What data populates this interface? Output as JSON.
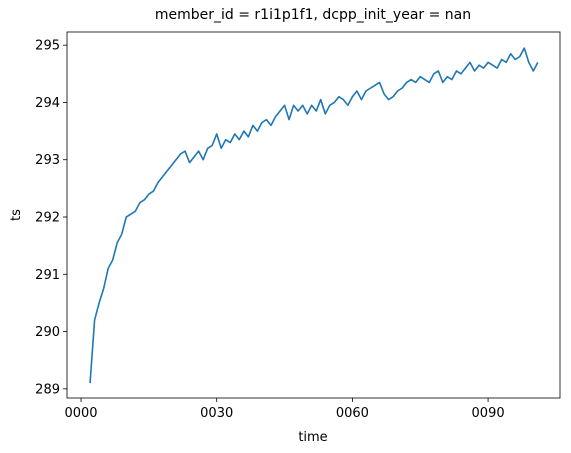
{
  "chart_data": {
    "type": "line",
    "title": "member_id = r1i1p1f1, dcpp_init_year = nan",
    "x_label": "time",
    "y_label": "ts",
    "x": [
      2,
      3,
      4,
      5,
      6,
      7,
      8,
      9,
      10,
      11,
      12,
      13,
      14,
      15,
      16,
      17,
      18,
      19,
      20,
      21,
      22,
      23,
      24,
      25,
      26,
      27,
      28,
      29,
      30,
      31,
      32,
      33,
      34,
      35,
      36,
      37,
      38,
      39,
      40,
      41,
      42,
      43,
      44,
      45,
      46,
      47,
      48,
      49,
      50,
      51,
      52,
      53,
      54,
      55,
      56,
      57,
      58,
      59,
      60,
      61,
      62,
      63,
      64,
      65,
      66,
      67,
      68,
      69,
      70,
      71,
      72,
      73,
      74,
      75,
      76,
      77,
      78,
      79,
      80,
      81,
      82,
      83,
      84,
      85,
      86,
      87,
      88,
      89,
      90,
      91,
      92,
      93,
      94,
      95,
      96,
      97,
      98,
      99,
      100,
      101
    ],
    "series": [
      {
        "name": "ts",
        "color": "#1f77b4",
        "values": [
          289.1,
          290.2,
          290.5,
          290.75,
          291.1,
          291.25,
          291.55,
          291.7,
          292.0,
          292.05,
          292.1,
          292.25,
          292.3,
          292.4,
          292.45,
          292.6,
          292.7,
          292.8,
          292.9,
          293.0,
          293.1,
          293.15,
          292.95,
          293.05,
          293.15,
          293.0,
          293.2,
          293.25,
          293.45,
          293.2,
          293.35,
          293.3,
          293.45,
          293.35,
          293.5,
          293.4,
          293.6,
          293.5,
          293.65,
          293.7,
          293.6,
          293.75,
          293.85,
          293.95,
          293.7,
          293.95,
          293.85,
          293.95,
          293.8,
          293.95,
          293.85,
          294.05,
          293.8,
          293.95,
          294.0,
          294.1,
          294.05,
          293.95,
          294.1,
          294.2,
          294.05,
          294.2,
          294.25,
          294.3,
          294.35,
          294.15,
          294.05,
          294.1,
          294.2,
          294.25,
          294.35,
          294.4,
          294.35,
          294.45,
          294.4,
          294.35,
          294.5,
          294.55,
          294.35,
          294.45,
          294.4,
          294.55,
          294.5,
          294.6,
          294.7,
          294.55,
          294.65,
          294.6,
          294.7,
          294.65,
          294.6,
          294.75,
          294.7,
          294.85,
          294.75,
          294.8,
          294.95,
          294.7,
          294.55,
          294.7
        ]
      }
    ],
    "xlim": [
      -3.1,
      105.9
    ],
    "xticks": [
      {
        "value": 0,
        "label": "0000"
      },
      {
        "value": 30,
        "label": "0030"
      },
      {
        "value": 60,
        "label": "0060"
      },
      {
        "value": 90,
        "label": "0090"
      }
    ],
    "ylim": [
      288.84,
      295.23
    ],
    "yticks": [
      289,
      290,
      291,
      292,
      293,
      294,
      295
    ]
  }
}
